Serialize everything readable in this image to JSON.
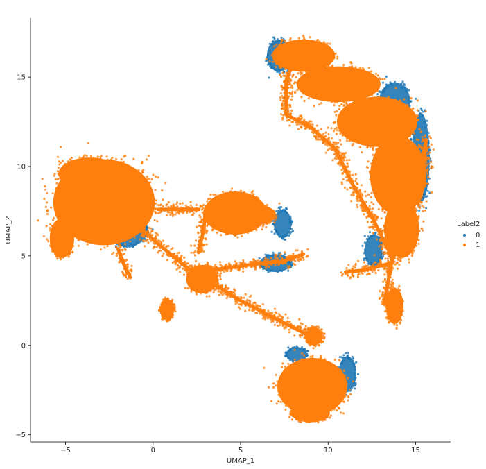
{
  "chart_data": {
    "type": "scatter",
    "xlabel": "UMAP_1",
    "ylabel": "UMAP_2",
    "xlim": [
      -7,
      17
    ],
    "ylim": [
      -5.4,
      18.3
    ],
    "xticks": [
      -5,
      0,
      5,
      10,
      15
    ],
    "yticks": [
      -5,
      0,
      5,
      10,
      15
    ],
    "grid": false,
    "legend": {
      "title": "Label2",
      "placement": "right",
      "entries": [
        {
          "label": "0",
          "color": "#1f77b4"
        },
        {
          "label": "1",
          "color": "#ff7f0e"
        }
      ]
    },
    "series": [
      {
        "name": "0",
        "color": "#1f77b4",
        "regions": [
          {
            "cx": 13.8,
            "cy": 13.6,
            "rx": 0.9,
            "ry": 1.1
          },
          {
            "cx": 15.3,
            "cy": 10.5,
            "rx": 0.5,
            "ry": 2.5
          },
          {
            "cx": 7.2,
            "cy": 16.2,
            "rx": 0.7,
            "ry": 0.9
          },
          {
            "cx": 7.4,
            "cy": 6.8,
            "rx": 0.5,
            "ry": 0.8
          },
          {
            "cx": 7.0,
            "cy": 4.6,
            "rx": 0.9,
            "ry": 0.5
          },
          {
            "cx": 11.1,
            "cy": -1.6,
            "rx": 0.5,
            "ry": 1.0
          },
          {
            "cx": 8.2,
            "cy": -0.5,
            "rx": 0.6,
            "ry": 0.4
          },
          {
            "cx": 12.6,
            "cy": 5.3,
            "rx": 0.5,
            "ry": 0.9
          },
          {
            "cx": -1.5,
            "cy": 6.5,
            "rx": 1.2,
            "ry": 1.0
          }
        ]
      },
      {
        "name": "1",
        "color": "#ff7f0e",
        "regions": [
          {
            "cx": -2.8,
            "cy": 8.0,
            "rx": 2.9,
            "ry": 2.4
          },
          {
            "cx": -5.2,
            "cy": 6.0,
            "rx": 0.7,
            "ry": 1.1
          },
          {
            "cx": -3.6,
            "cy": 9.6,
            "rx": 1.8,
            "ry": 0.9
          },
          {
            "cx": 4.7,
            "cy": 7.4,
            "rx": 1.8,
            "ry": 1.2
          },
          {
            "cx": 6.2,
            "cy": 7.3,
            "rx": 0.8,
            "ry": 0.5
          },
          {
            "cx": 2.8,
            "cy": 3.7,
            "rx": 0.9,
            "ry": 0.8
          },
          {
            "cx": 0.8,
            "cy": 2.0,
            "rx": 0.4,
            "ry": 0.6
          },
          {
            "cx": 8.6,
            "cy": 16.2,
            "rx": 1.8,
            "ry": 0.9
          },
          {
            "cx": 10.6,
            "cy": 14.6,
            "rx": 2.4,
            "ry": 1.0
          },
          {
            "cx": 12.8,
            "cy": 12.5,
            "rx": 2.3,
            "ry": 1.4
          },
          {
            "cx": 14.0,
            "cy": 9.5,
            "rx": 1.6,
            "ry": 2.2
          },
          {
            "cx": 14.2,
            "cy": 6.5,
            "rx": 1.0,
            "ry": 1.6
          },
          {
            "cx": 13.8,
            "cy": 2.2,
            "rx": 0.5,
            "ry": 1.0
          },
          {
            "cx": 9.1,
            "cy": -2.3,
            "rx": 2.0,
            "ry": 1.6
          },
          {
            "cx": 9.0,
            "cy": -3.8,
            "rx": 1.1,
            "ry": 0.5
          },
          {
            "cx": 9.2,
            "cy": 0.5,
            "rx": 0.5,
            "ry": 0.5
          }
        ],
        "paths": [
          [
            [
              -1.5,
              7.2
            ],
            [
              0.5,
              5.5
            ],
            [
              2.0,
              4.3
            ],
            [
              3.2,
              3.6
            ]
          ],
          [
            [
              3.2,
              3.6
            ],
            [
              5.0,
              2.5
            ],
            [
              7.0,
              1.5
            ],
            [
              8.6,
              0.7
            ],
            [
              9.4,
              0.3
            ]
          ],
          [
            [
              3.2,
              4.2
            ],
            [
              4.8,
              4.4
            ],
            [
              6.2,
              4.6
            ],
            [
              7.4,
              4.7
            ],
            [
              8.6,
              5.1
            ]
          ],
          [
            [
              2.6,
              5.2
            ],
            [
              2.9,
              6.5
            ],
            [
              3.0,
              7.6
            ]
          ],
          [
            [
              0.3,
              7.6
            ],
            [
              1.5,
              7.6
            ],
            [
              2.6,
              7.6
            ]
          ],
          [
            [
              15.6,
              11.5
            ],
            [
              15.3,
              9.0
            ],
            [
              14.4,
              6.5
            ],
            [
              13.6,
              4.6
            ]
          ],
          [
            [
              13.6,
              4.6
            ],
            [
              12.8,
              4.4
            ],
            [
              12.0,
              4.2
            ],
            [
              11.0,
              4.1
            ]
          ],
          [
            [
              13.6,
              4.6
            ],
            [
              13.4,
              3.4
            ],
            [
              13.2,
              2.3
            ]
          ],
          [
            [
              8.4,
              16.8
            ],
            [
              7.6,
              14.8
            ],
            [
              7.6,
              12.9
            ]
          ],
          [
            [
              7.6,
              12.9
            ],
            [
              9.0,
              12.2
            ],
            [
              10.4,
              11.0
            ]
          ],
          [
            [
              10.4,
              11.0
            ],
            [
              11.4,
              9.0
            ],
            [
              12.6,
              7.0
            ],
            [
              13.6,
              5.0
            ]
          ],
          [
            [
              -2.0,
              5.4
            ],
            [
              -1.7,
              4.6
            ],
            [
              -1.3,
              3.8
            ]
          ]
        ]
      }
    ]
  }
}
